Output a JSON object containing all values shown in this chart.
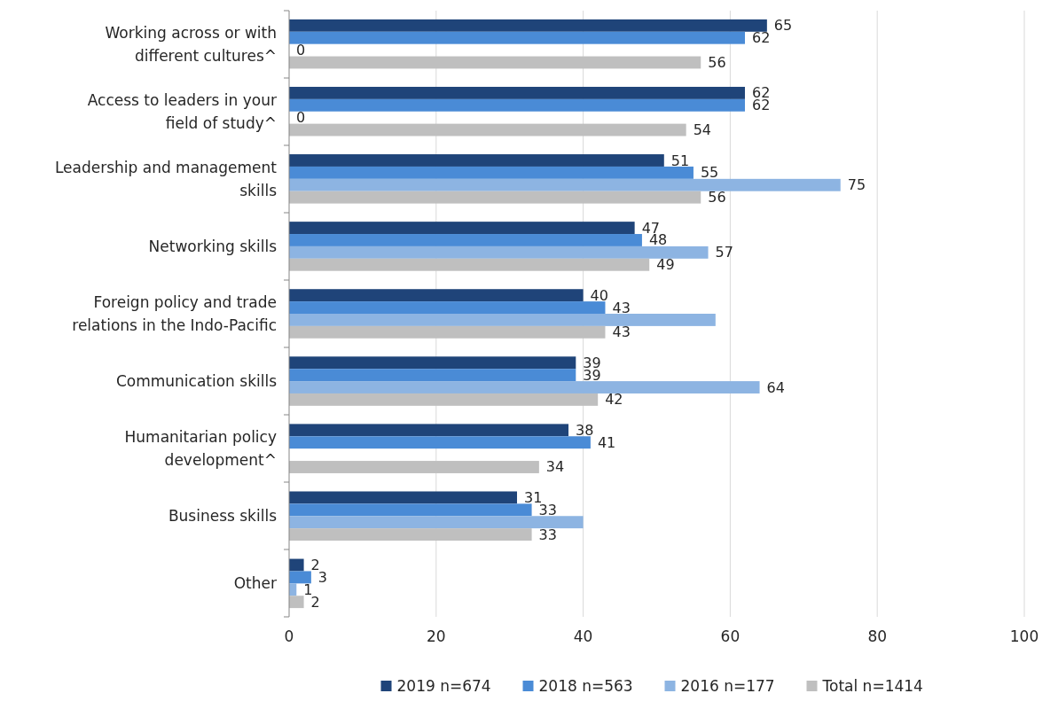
{
  "chart_data": {
    "type": "bar",
    "orientation": "horizontal",
    "categories": [
      "Working across or with different cultures^",
      "Access to leaders in your field of study^",
      "Leadership and management skills",
      "Networking skills",
      "Foreign policy and trade relations in the Indo-Pacific",
      "Communication skills",
      "Humanitarian policy development^",
      "Business skills",
      "Other"
    ],
    "series": [
      {
        "name": "2019 n=674",
        "color": "#1f4479",
        "values": [
          65,
          62,
          51,
          47,
          40,
          39,
          38,
          31,
          2
        ],
        "value_labels": [
          "65",
          "62",
          "51",
          "47",
          "40",
          "39",
          "38",
          "31",
          "2"
        ]
      },
      {
        "name": "2018 n=563",
        "color": "#4a8bd6",
        "values": [
          62,
          62,
          55,
          48,
          43,
          39,
          41,
          33,
          3
        ],
        "value_labels": [
          "62",
          "62",
          "55",
          "48",
          "43",
          "39",
          "41",
          "33",
          "3"
        ]
      },
      {
        "name": "2016 n=177",
        "color": "#8db4e2",
        "values": [
          0,
          0,
          75,
          57,
          58,
          64,
          null,
          40,
          1
        ],
        "value_labels": [
          "0",
          "0",
          "75",
          "57",
          null,
          "64",
          null,
          null,
          "1"
        ]
      },
      {
        "name": "Total n=1414",
        "color": "#bfbfbf",
        "values": [
          56,
          54,
          56,
          49,
          43,
          42,
          34,
          33,
          2
        ],
        "value_labels": [
          "56",
          "54",
          "56",
          "49",
          "43",
          "42",
          "34",
          "33",
          "2"
        ]
      }
    ],
    "xlim": [
      0,
      100
    ],
    "xticks": [
      0,
      20,
      40,
      60,
      80,
      100
    ],
    "grid": "x",
    "legend": "bottom"
  }
}
